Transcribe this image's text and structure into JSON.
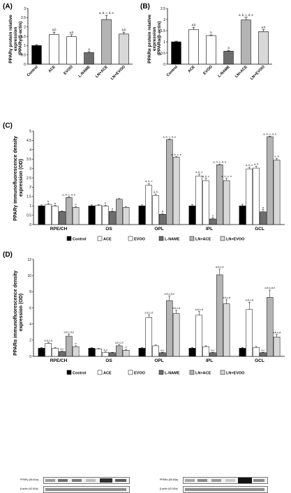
{
  "panels": [
    {
      "id": "A",
      "label": "(A)",
      "ylabel_lines": [
        "PPARγ protein relative",
        "expression",
        "(PPARγ/β-actin)"
      ],
      "blot_labels": [
        "PPARγ (56 kDa)",
        "β-actin (42 kDa)"
      ]
    },
    {
      "id": "B",
      "label": "(B)",
      "ylabel_lines": [
        "PPARα protein relative",
        "expression",
        "(PPARα/β-actin)"
      ],
      "blot_labels": [
        "PPARα (55 kDa)",
        "β-actin (42 kDa)"
      ]
    },
    {
      "id": "C",
      "label": "(C)",
      "ylabel_lines": [
        "PPARγ immunofluorescence density",
        "expression (OD)"
      ]
    },
    {
      "id": "D",
      "label": "(D)",
      "ylabel_lines": [
        "PPARα immunofluorescence density",
        "expression (OD)"
      ]
    }
  ],
  "chart_data": [
    {
      "panel": "A",
      "type": "bar",
      "categories": [
        "Control",
        "ACE",
        "EVOO",
        "L-NAME",
        "LN+ACE",
        "LN+EVOO"
      ],
      "values": [
        1.0,
        1.6,
        1.48,
        0.62,
        2.4,
        1.62
      ],
      "errors": [
        0.05,
        0.12,
        0.1,
        0.06,
        0.22,
        0.1
      ],
      "annotations": [
        "",
        "a,b",
        "a,b",
        "a",
        "a, b, c, d, e",
        "a,b"
      ],
      "colors": [
        "#000000",
        "#ffffff",
        "#ffffff",
        "#6d6d6d",
        "#b4b4b4",
        "#d8d8d8"
      ],
      "ylim": [
        0,
        3
      ],
      "yticks": [
        0,
        0.5,
        1,
        1.5,
        2,
        2.5,
        3
      ],
      "grid": false
    },
    {
      "panel": "B",
      "type": "bar",
      "categories": [
        "Control",
        "ACE",
        "EVOO",
        "L-NAME",
        "LN+ACE",
        "LN+EVOO"
      ],
      "values": [
        1.0,
        1.55,
        1.28,
        0.58,
        1.98,
        1.46
      ],
      "errors": [
        0.03,
        0.1,
        0.03,
        0.04,
        0.12,
        0.08
      ],
      "annotations": [
        "",
        "a,b",
        "b",
        "a",
        "a, b, c, d, e",
        "a,b"
      ],
      "colors": [
        "#000000",
        "#ffffff",
        "#ffffff",
        "#6d6d6d",
        "#b4b4b4",
        "#d8d8d8"
      ],
      "ylim": [
        0,
        2.5
      ],
      "yticks": [
        0,
        0.5,
        1,
        1.5,
        2,
        2.5
      ],
      "grid": false
    },
    {
      "panel": "C",
      "type": "bar",
      "categories": [
        "RPE/CH",
        "OS",
        "OPL",
        "IPL",
        "GCL"
      ],
      "series": [
        {
          "name": "Control",
          "color": "#000000",
          "values": [
            1.0,
            1.0,
            1.0,
            1.0,
            1.0
          ],
          "errors": [
            0.05,
            0.05,
            0.05,
            0.06,
            0.08
          ]
        },
        {
          "name": "ACE",
          "color": "#ffffff",
          "values": [
            1.08,
            1.02,
            2.1,
            2.6,
            2.98
          ],
          "errors": [
            0.04,
            0.04,
            0.1,
            0.1,
            0.08
          ]
        },
        {
          "name": "EVOO",
          "color": "#ffffff",
          "values": [
            0.98,
            0.98,
            1.55,
            2.35,
            3.02
          ],
          "errors": [
            0.04,
            0.05,
            0.08,
            0.12,
            0.1
          ]
        },
        {
          "name": "L-NAME",
          "color": "#6d6d6d",
          "values": [
            0.7,
            0.7,
            0.55,
            0.3,
            0.68
          ],
          "errors": [
            0.04,
            0.03,
            0.05,
            0.06,
            0.12
          ]
        },
        {
          "name": "LN+ACE",
          "color": "#b4b4b4",
          "values": [
            1.45,
            1.35,
            4.55,
            3.2,
            4.7
          ],
          "errors": [
            0.04,
            0.04,
            0.03,
            0.04,
            0.03
          ]
        },
        {
          "name": "LN+EVOO",
          "color": "#d8d8d8",
          "values": [
            0.92,
            0.92,
            3.6,
            2.35,
            3.45
          ],
          "errors": [
            0.04,
            0.04,
            0.03,
            0.12,
            0.08
          ]
        }
      ],
      "annotations": [
        [
          "",
          "b",
          "b",
          "",
          "a, b, c, d, e",
          "b"
        ],
        [
          "",
          "",
          "b",
          "a",
          "",
          ""
        ],
        [
          "",
          "a, b, c",
          "a, b",
          "a",
          "a, b, c, d, e",
          "a, b, c, e"
        ],
        [
          "",
          "a, b, c",
          "a, b, c",
          "a",
          "a, b, c, d, e",
          "a, b, c, e"
        ],
        [
          "",
          "a, b, c",
          "a, b",
          "a",
          "a, b, c, d, e",
          "a, b"
        ]
      ],
      "ylim": [
        0,
        5
      ],
      "yticks": [
        0,
        0.5,
        1,
        1.5,
        2,
        2.5,
        3,
        3.5,
        4,
        4.5,
        5
      ],
      "legend_position": "bottom",
      "grid": false
    },
    {
      "panel": "D",
      "type": "bar",
      "categories": [
        "RPE/CH",
        "OS",
        "OPL",
        "IPL",
        "GCL"
      ],
      "series": [
        {
          "name": "Control",
          "color": "#000000",
          "values": [
            1.0,
            1.0,
            1.0,
            1.0,
            1.0
          ],
          "errors": [
            0.1,
            0.08,
            0.1,
            0.1,
            0.1
          ]
        },
        {
          "name": "ACE",
          "color": "#ffffff",
          "values": [
            1.6,
            0.9,
            4.8,
            5.1,
            5.8
          ],
          "errors": [
            0.12,
            0.08,
            0.35,
            0.45,
            0.9
          ]
        },
        {
          "name": "EVOO",
          "color": "#ffffff",
          "values": [
            1.0,
            0.5,
            1.3,
            1.2,
            1.1
          ],
          "errors": [
            0.08,
            0.05,
            0.1,
            0.1,
            0.12
          ]
        },
        {
          "name": "L-NAME",
          "color": "#6d6d6d",
          "values": [
            0.6,
            0.45,
            0.45,
            0.45,
            0.45
          ],
          "errors": [
            0.05,
            0.05,
            0.05,
            0.05,
            0.05
          ]
        },
        {
          "name": "LN+ACE",
          "color": "#b4b4b4",
          "values": [
            2.5,
            1.3,
            6.9,
            10.1,
            7.3
          ],
          "errors": [
            0.25,
            0.15,
            0.6,
            0.7,
            0.9
          ]
        },
        {
          "name": "LN+EVOO",
          "color": "#d8d8d8",
          "values": [
            1.2,
            0.75,
            5.3,
            6.5,
            2.4
          ],
          "errors": [
            0.1,
            0.08,
            0.4,
            0.5,
            0.3
          ]
        }
      ],
      "annotations": [
        [
          "",
          "a,b,c,d",
          "",
          "a,c",
          "a,b,c,d,e",
          "b"
        ],
        [
          "",
          "",
          "a,c",
          "",
          "a,b,c,d",
          "b"
        ],
        [
          "",
          "a,b,c,d",
          "",
          "a,c",
          "a,b,c,d,e",
          "a,b,c,d"
        ],
        [
          "",
          "a,b,c,d",
          "",
          "a,c",
          "a,b,c,d",
          "a,b,c,d"
        ],
        [
          "",
          "a,b,c,d",
          "",
          "a,c",
          "a,b,c,d,e",
          "a,b,c,d"
        ]
      ],
      "ylim": [
        0,
        12
      ],
      "yticks": [
        0,
        2,
        4,
        6,
        8,
        10,
        12
      ],
      "legend_position": "bottom",
      "grid": false
    }
  ]
}
